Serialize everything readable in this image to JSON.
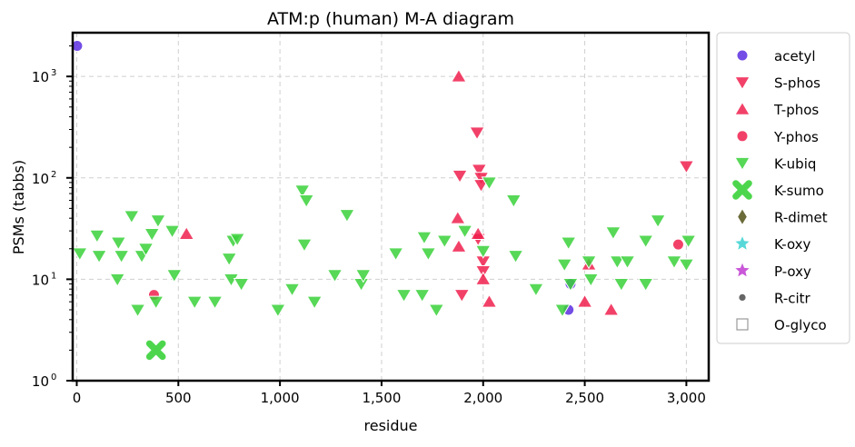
{
  "chart_data": {
    "type": "scatter",
    "title": "ATM:p (human) M-A diagram",
    "xlabel": "residue",
    "ylabel": "PSMs (tabbs)",
    "xlim": [
      -20,
      3110
    ],
    "ylim": [
      1,
      2700
    ],
    "yscale": "log",
    "grid": true,
    "legend_position": "right",
    "x_ticks": [
      "0",
      "500",
      "1,000",
      "1,500",
      "2,000",
      "2,500",
      "3,000"
    ],
    "x_tick_values": [
      0,
      500,
      1000,
      1500,
      2000,
      2500,
      3000
    ],
    "y_ticks": [
      "10",
      "10",
      "10",
      "10"
    ],
    "y_tick_exponents": [
      "0",
      "1",
      "2",
      "3"
    ],
    "y_tick_values": [
      1,
      10,
      100,
      1000
    ],
    "series": [
      {
        "name": "acetyl",
        "marker": "circle",
        "color": "#5b2ee0",
        "points": [
          [
            2,
            2000
          ],
          [
            2420,
            5
          ],
          [
            2430,
            9
          ]
        ]
      },
      {
        "name": "S-phos",
        "marker": "triangle-down",
        "color": "#f0204e",
        "points": [
          [
            1885,
            105
          ],
          [
            1895,
            7
          ],
          [
            1970,
            280
          ],
          [
            1980,
            120
          ],
          [
            1990,
            100
          ],
          [
            1990,
            85
          ],
          [
            1975,
            25
          ],
          [
            2000,
            15
          ],
          [
            2000,
            12
          ],
          [
            3000,
            130
          ]
        ]
      },
      {
        "name": "T-phos",
        "marker": "triangle-up",
        "color": "#f0204e",
        "points": [
          [
            1880,
            1000
          ],
          [
            540,
            28
          ],
          [
            1875,
            40
          ],
          [
            1880,
            21
          ],
          [
            2000,
            10
          ],
          [
            2030,
            6
          ],
          [
            2520,
            14
          ],
          [
            2500,
            6
          ],
          [
            2630,
            5
          ],
          [
            1975,
            28
          ]
        ]
      },
      {
        "name": "Y-phos",
        "marker": "circle",
        "color": "#f0204e",
        "points": [
          [
            380,
            7
          ],
          [
            2960,
            22
          ]
        ]
      },
      {
        "name": "K-ubiq",
        "marker": "triangle-down",
        "color": "#3ad13a",
        "points": [
          [
            15,
            18
          ],
          [
            100,
            27
          ],
          [
            110,
            17
          ],
          [
            200,
            10
          ],
          [
            205,
            23
          ],
          [
            220,
            17
          ],
          [
            270,
            42
          ],
          [
            300,
            5
          ],
          [
            320,
            17
          ],
          [
            340,
            20
          ],
          [
            370,
            28
          ],
          [
            390,
            6
          ],
          [
            400,
            38
          ],
          [
            470,
            30
          ],
          [
            480,
            11
          ],
          [
            580,
            6
          ],
          [
            680,
            6
          ],
          [
            750,
            16
          ],
          [
            760,
            10
          ],
          [
            770,
            24
          ],
          [
            790,
            25
          ],
          [
            810,
            9
          ],
          [
            990,
            5
          ],
          [
            1060,
            8
          ],
          [
            1110,
            75
          ],
          [
            1120,
            22
          ],
          [
            1130,
            60
          ],
          [
            1170,
            6
          ],
          [
            1270,
            11
          ],
          [
            1330,
            43
          ],
          [
            1400,
            9
          ],
          [
            1410,
            11
          ],
          [
            1570,
            18
          ],
          [
            1610,
            7
          ],
          [
            1700,
            7
          ],
          [
            1710,
            26
          ],
          [
            1730,
            18
          ],
          [
            1770,
            5
          ],
          [
            1810,
            24
          ],
          [
            1910,
            30
          ],
          [
            2000,
            19
          ],
          [
            2030,
            90
          ],
          [
            2150,
            60
          ],
          [
            2160,
            17
          ],
          [
            2260,
            8
          ],
          [
            2390,
            5
          ],
          [
            2400,
            14
          ],
          [
            2420,
            23
          ],
          [
            2430,
            9
          ],
          [
            2520,
            15
          ],
          [
            2530,
            10
          ],
          [
            2640,
            29
          ],
          [
            2660,
            15
          ],
          [
            2710,
            15
          ],
          [
            2680,
            9
          ],
          [
            2800,
            9
          ],
          [
            2800,
            24
          ],
          [
            2860,
            38
          ],
          [
            2940,
            15
          ],
          [
            3000,
            14
          ],
          [
            3010,
            24
          ]
        ]
      },
      {
        "name": "K-sumo",
        "marker": "x",
        "color": "#3ad13a",
        "points": [
          [
            390,
            2
          ]
        ]
      },
      {
        "name": "R-dimet",
        "marker": "diamond",
        "color": "#6b6b3a",
        "points": []
      },
      {
        "name": "K-oxy",
        "marker": "star",
        "color": "#3ad1d1",
        "points": []
      },
      {
        "name": "P-oxy",
        "marker": "star",
        "color": "#c03ad1",
        "points": []
      },
      {
        "name": "R-citr",
        "marker": "dot",
        "color": "#666666",
        "points": []
      },
      {
        "name": "O-glyco",
        "marker": "square-open",
        "color": "#999999",
        "points": []
      }
    ]
  }
}
